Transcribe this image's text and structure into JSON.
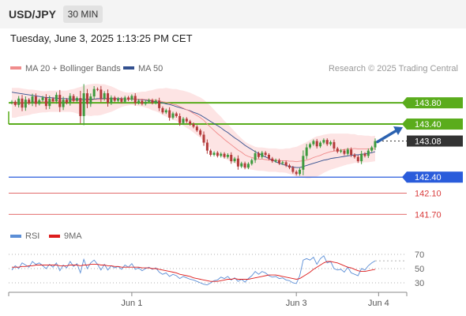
{
  "header": {
    "pair": "USD/JPY",
    "timeframe": "30 MIN",
    "timestamp": "Tuesday, June 3, 2025 1:13:25 PM CET"
  },
  "legend": {
    "ma20_bb": "MA 20 + Bollinger Bands",
    "ma50": "MA 50",
    "copyright": "Research © 2025 Trading Central",
    "rsi": "RSI",
    "rsi_ma": "9MA"
  },
  "colors": {
    "ma20": "#f08c8c",
    "bollinger_fill": "#fde4e4",
    "ma50": "#33508f",
    "candle_up": "#3d9a3d",
    "candle_down": "#b33a3a",
    "resistance": "#5aac1c",
    "current": "#333333",
    "pivot": "#2a5cdb",
    "support": "#d93a3a",
    "arrow": "#2b62b0",
    "rsi_line": "#5b8ed6",
    "rsi_ma": "#dd1c1c",
    "grid": "#999999"
  },
  "chart_data": [
    {
      "type": "candlestick",
      "title": "USD/JPY 30 MIN",
      "ylim": [
        141.54,
        144.1
      ],
      "x_ticks": [
        {
          "label": "Jun 1",
          "index": 35
        },
        {
          "label": "Jun 3",
          "index": 83
        },
        {
          "label": "Jun 4",
          "index": 107
        }
      ],
      "levels": [
        {
          "value": 143.8,
          "label": "143.80",
          "kind": "resistance"
        },
        {
          "value": 143.4,
          "label": "143.40",
          "kind": "resistance"
        },
        {
          "value": 143.08,
          "label": "143.08",
          "kind": "current"
        },
        {
          "value": 142.4,
          "label": "142.40",
          "kind": "pivot"
        },
        {
          "value": 142.1,
          "label": "142.10",
          "kind": "support"
        },
        {
          "value": 141.7,
          "label": "141.70",
          "kind": "support"
        }
      ],
      "closes": [
        143.82,
        143.76,
        143.88,
        143.71,
        143.86,
        143.79,
        143.92,
        143.78,
        143.85,
        143.9,
        143.74,
        143.88,
        143.83,
        143.95,
        143.72,
        143.86,
        143.8,
        143.93,
        143.84,
        143.89,
        143.55,
        143.98,
        143.78,
        143.92,
        144.06,
        144.05,
        143.88,
        143.98,
        143.8,
        143.9,
        143.84,
        143.88,
        143.82,
        143.9,
        143.86,
        143.93,
        143.8,
        143.84,
        143.78,
        143.82,
        143.85,
        143.8,
        143.84,
        143.7,
        143.62,
        143.66,
        143.52,
        143.6,
        143.55,
        143.42,
        143.5,
        143.45,
        143.4,
        143.35,
        143.28,
        143.2,
        143.05,
        142.9,
        142.82,
        142.86,
        142.8,
        142.84,
        142.78,
        142.82,
        142.7,
        142.75,
        142.6,
        142.66,
        142.58,
        142.65,
        142.72,
        142.85,
        142.78,
        142.86,
        142.82,
        142.75,
        142.7,
        142.72,
        142.66,
        142.68,
        142.62,
        142.58,
        142.5,
        142.46,
        142.54,
        142.8,
        142.96,
        143.02,
        143.08,
        142.98,
        143.05,
        143.1,
        143.02,
        143.06,
        142.94,
        142.88,
        142.9,
        142.84,
        142.92,
        142.82,
        142.78,
        142.7,
        142.84,
        142.8,
        142.9,
        142.96,
        143.08
      ],
      "ma20": [
        143.8,
        143.8,
        143.81,
        143.81,
        143.81,
        143.81,
        143.82,
        143.82,
        143.82,
        143.82,
        143.82,
        143.83,
        143.83,
        143.83,
        143.83,
        143.83,
        143.83,
        143.84,
        143.84,
        143.84,
        143.84,
        143.84,
        143.85,
        143.85,
        143.86,
        143.86,
        143.86,
        143.87,
        143.87,
        143.87,
        143.87,
        143.87,
        143.87,
        143.87,
        143.87,
        143.88,
        143.87,
        143.87,
        143.87,
        143.86,
        143.86,
        143.85,
        143.85,
        143.84,
        143.82,
        143.81,
        143.79,
        143.77,
        143.76,
        143.73,
        143.7,
        143.67,
        143.64,
        143.6,
        143.56,
        143.52,
        143.47,
        143.4,
        143.34,
        143.28,
        143.22,
        143.17,
        143.11,
        143.06,
        143.01,
        142.96,
        142.91,
        142.87,
        142.82,
        142.79,
        142.77,
        142.75,
        142.74,
        142.74,
        142.73,
        142.72,
        142.72,
        142.72,
        142.71,
        142.71,
        142.71,
        142.7,
        142.7,
        142.69,
        142.7,
        142.71,
        142.72,
        142.74,
        142.77,
        142.79,
        142.81,
        142.84,
        142.86,
        142.88,
        142.89,
        142.9,
        142.91,
        142.92,
        142.93,
        142.93,
        142.94,
        142.93,
        142.93,
        142.93,
        142.93,
        142.93,
        142.94
      ],
      "ma50": [
        144.0,
        143.99,
        143.98,
        143.97,
        143.96,
        143.95,
        143.94,
        143.93,
        143.92,
        143.91,
        143.9,
        143.9,
        143.89,
        143.89,
        143.88,
        143.88,
        143.88,
        143.87,
        143.87,
        143.87,
        143.87,
        143.87,
        143.87,
        143.87,
        143.87,
        143.88,
        143.88,
        143.88,
        143.88,
        143.88,
        143.88,
        143.88,
        143.88,
        143.87,
        143.87,
        143.87,
        143.87,
        143.86,
        143.86,
        143.85,
        143.84,
        143.83,
        143.82,
        143.81,
        143.8,
        143.78,
        143.77,
        143.75,
        143.73,
        143.71,
        143.69,
        143.67,
        143.65,
        143.62,
        143.6,
        143.57,
        143.53,
        143.49,
        143.45,
        143.41,
        143.37,
        143.33,
        143.28,
        143.24,
        143.19,
        143.14,
        143.1,
        143.05,
        143.0,
        142.96,
        142.92,
        142.88,
        142.85,
        142.81,
        142.78,
        142.75,
        142.72,
        142.69,
        142.66,
        142.64,
        142.62,
        142.6,
        142.59,
        142.58,
        142.58,
        142.6,
        142.62,
        142.64,
        142.66,
        142.68,
        142.7,
        142.72,
        142.73,
        142.75,
        142.76,
        142.77,
        142.78,
        142.79,
        142.8,
        142.81,
        142.82,
        142.82,
        142.83,
        142.84,
        142.85,
        142.86,
        142.88
      ],
      "bb_width": [
        0.28,
        0.28,
        0.27,
        0.26,
        0.25,
        0.24,
        0.23,
        0.22,
        0.21,
        0.2,
        0.2,
        0.2,
        0.2,
        0.2,
        0.2,
        0.2,
        0.2,
        0.21,
        0.22,
        0.24,
        0.26,
        0.28,
        0.29,
        0.3,
        0.3,
        0.3,
        0.29,
        0.28,
        0.26,
        0.24,
        0.21,
        0.18,
        0.15,
        0.13,
        0.12,
        0.12,
        0.12,
        0.13,
        0.14,
        0.15,
        0.17,
        0.19,
        0.21,
        0.23,
        0.25,
        0.27,
        0.28,
        0.29,
        0.3,
        0.31,
        0.33,
        0.34,
        0.35,
        0.36,
        0.37,
        0.38,
        0.39,
        0.4,
        0.4,
        0.39,
        0.38,
        0.37,
        0.35,
        0.34,
        0.32,
        0.3,
        0.28,
        0.26,
        0.25,
        0.24,
        0.23,
        0.22,
        0.22,
        0.22,
        0.22,
        0.22,
        0.22,
        0.22,
        0.22,
        0.22,
        0.23,
        0.24,
        0.26,
        0.28,
        0.3,
        0.32,
        0.34,
        0.36,
        0.37,
        0.38,
        0.37,
        0.36,
        0.35,
        0.34,
        0.33,
        0.32,
        0.31,
        0.3,
        0.29,
        0.28,
        0.27,
        0.26,
        0.26,
        0.25,
        0.25,
        0.24,
        0.24
      ]
    },
    {
      "type": "line",
      "title": "RSI",
      "ylim": [
        30,
        70
      ],
      "y_ticks": [
        70,
        50,
        30
      ],
      "series": [
        {
          "name": "RSI",
          "values": [
            48,
            54,
            50,
            58,
            55,
            52,
            60,
            56,
            58,
            54,
            50,
            56,
            52,
            58,
            47,
            55,
            51,
            60,
            53,
            57,
            44,
            63,
            50,
            58,
            62,
            56,
            48,
            56,
            48,
            54,
            51,
            53,
            49,
            55,
            52,
            57,
            49,
            51,
            47,
            50,
            52,
            49,
            51,
            45,
            42,
            44,
            39,
            42,
            40,
            36,
            39,
            37,
            35,
            34,
            32,
            30,
            28,
            27,
            30,
            33,
            34,
            38,
            36,
            39,
            34,
            37,
            32,
            35,
            31,
            36,
            40,
            46,
            42,
            46,
            44,
            40,
            38,
            39,
            36,
            37,
            34,
            33,
            30,
            29,
            40,
            62,
            64,
            62,
            66,
            56,
            64,
            68,
            58,
            60,
            50,
            48,
            49,
            45,
            52,
            44,
            42,
            40,
            50,
            48,
            54,
            58,
            61
          ]
        },
        {
          "name": "9MA",
          "values": [
            52,
            52,
            52,
            53,
            53,
            54,
            54,
            55,
            55,
            55,
            55,
            55,
            55,
            55,
            54,
            54,
            54,
            55,
            55,
            55,
            54,
            55,
            55,
            56,
            56,
            56,
            55,
            55,
            54,
            54,
            53,
            53,
            52,
            52,
            52,
            52,
            52,
            52,
            51,
            51,
            51,
            50,
            50,
            49,
            48,
            47,
            46,
            45,
            44,
            42,
            41,
            40,
            39,
            37,
            36,
            35,
            34,
            33,
            32,
            32,
            32,
            33,
            34,
            35,
            35,
            36,
            35,
            35,
            35,
            35,
            36,
            37,
            38,
            39,
            40,
            41,
            41,
            41,
            40,
            39,
            38,
            37,
            36,
            35,
            36,
            39,
            42,
            45,
            49,
            52,
            55,
            58,
            60,
            60,
            59,
            58,
            56,
            54,
            52,
            51,
            49,
            47,
            46,
            46,
            47,
            48,
            49
          ]
        }
      ]
    }
  ]
}
